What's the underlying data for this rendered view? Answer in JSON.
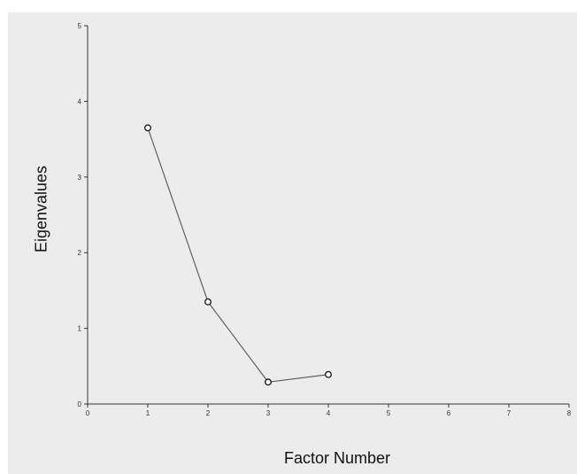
{
  "chart_data": {
    "type": "line",
    "xlabel": "Factor Number",
    "ylabel": "Eigenvalues",
    "xlim": [
      0,
      8
    ],
    "ylim": [
      0,
      5
    ],
    "x_ticks": [
      0,
      1,
      2,
      3,
      4,
      5,
      6,
      7,
      8
    ],
    "y_ticks": [
      0,
      1,
      2,
      3,
      4,
      5
    ],
    "grid": false,
    "legend": "none",
    "markers": "open-circle",
    "series": [
      {
        "x": [
          1,
          2,
          3,
          4
        ],
        "values": [
          3.65,
          1.35,
          0.29,
          0.39
        ]
      }
    ]
  }
}
